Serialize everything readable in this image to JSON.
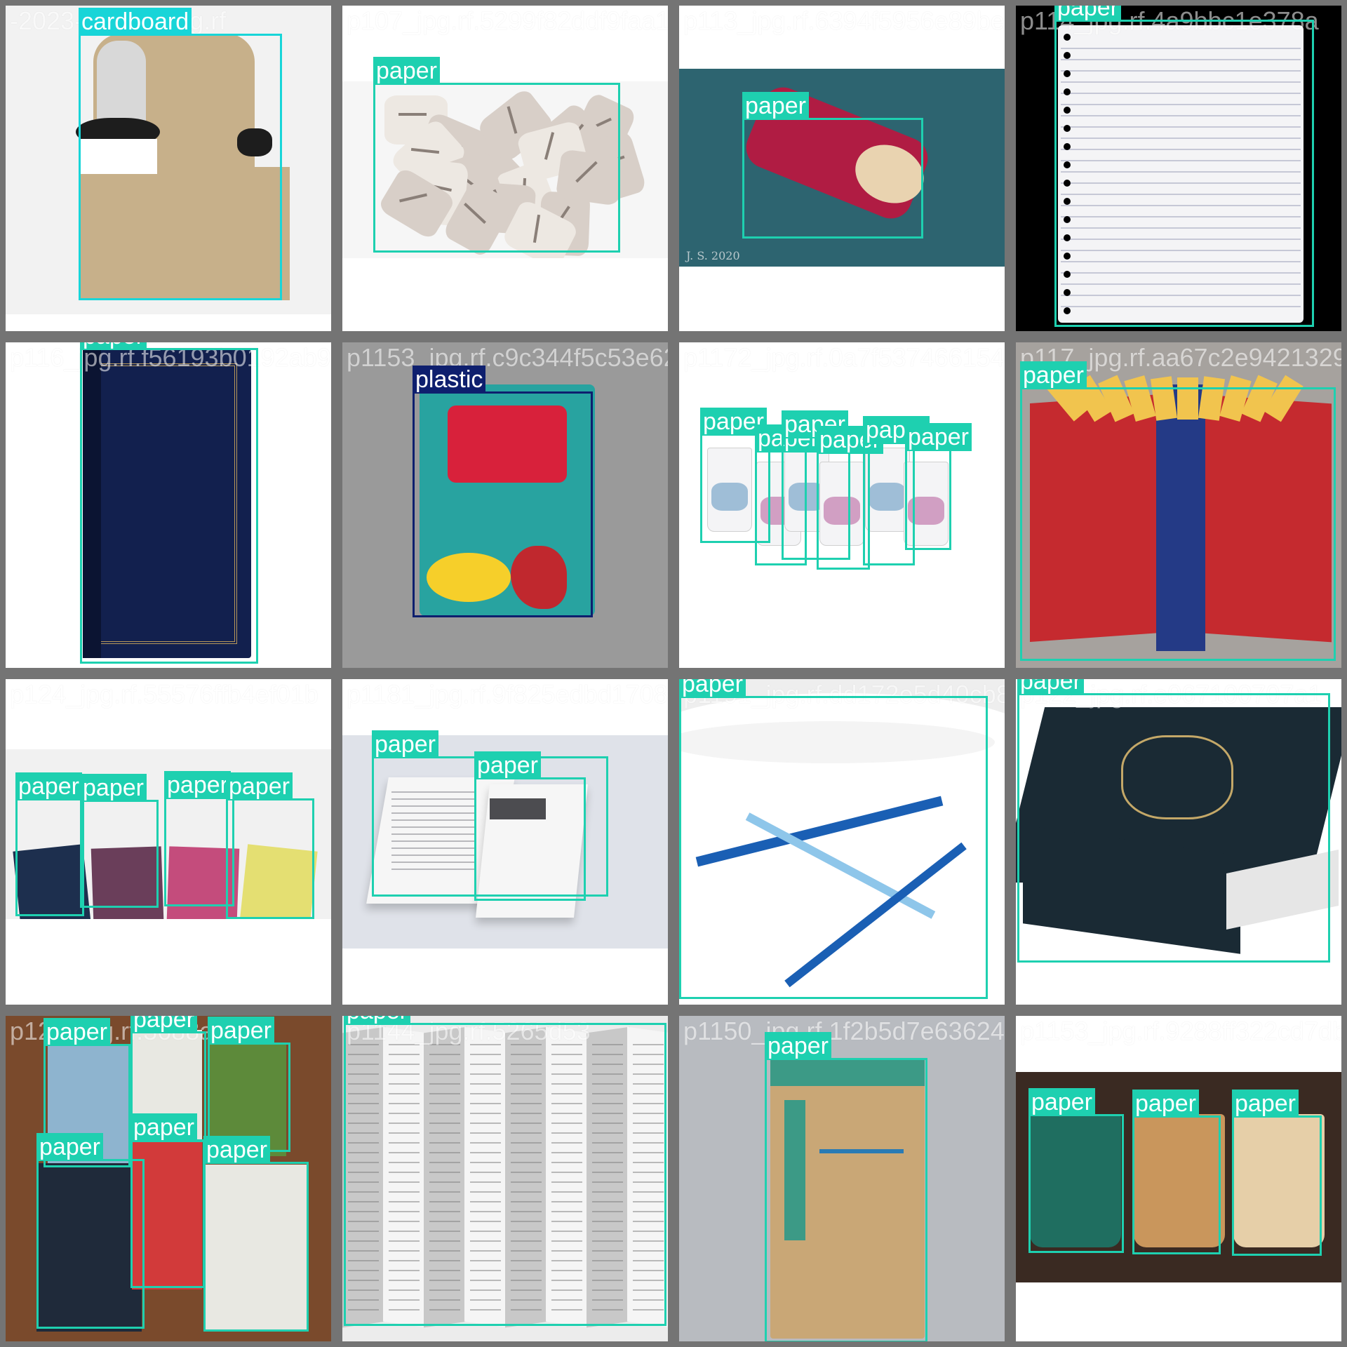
{
  "colors": {
    "paper": "#1ed0b0",
    "cardboard": "#18d5d8",
    "plastic": "#0e1f6e",
    "grid_line": "#747474"
  },
  "tiles": [
    {
      "filename": "-2023-06-16_png.rf",
      "scene": {
        "bg": "#f2f2f2",
        "subject": "cardboard-cup-carrier",
        "colors": [
          "#c7b08a",
          "#1d1d1d",
          "#ffffff"
        ]
      },
      "boxes": [
        {
          "label": "cardboard"
        }
      ]
    },
    {
      "filename": "p107_jpg.rf.5299f82ddf9faa15c7d4",
      "scene": {
        "bg": "#f6f6f6",
        "subject": "crumpled-newspaper",
        "colors": [
          "#d8cfc8",
          "#8a7f78",
          "#ede8e2"
        ]
      },
      "boxes": [
        {
          "label": "paper"
        }
      ]
    },
    {
      "filename": "p113_jpg.rf.6394f5956e89be01",
      "scene": {
        "bg": "#2d6470",
        "subject": "paper-cup-sleeve",
        "colors": [
          "#b01c43",
          "#e9d3b0",
          "#ffffff"
        ],
        "caption": "J. S. 2020"
      },
      "boxes": [
        {
          "label": "paper"
        }
      ]
    },
    {
      "filename": "p114_jpg.rf.4a9bbc1e378a",
      "scene": {
        "bg": "#000000",
        "subject": "torn-notebook-page",
        "colors": [
          "#f4f4f6",
          "#c6c8d6",
          "#000000"
        ]
      },
      "boxes": [
        {
          "label": "paper"
        }
      ]
    },
    {
      "filename": "p116_jpg.rf.f56193b0192ab95",
      "scene": {
        "bg": "#ffffff",
        "subject": "blue-hardcover-book",
        "colors": [
          "#12204e",
          "#b8985a",
          "#0b1432"
        ]
      },
      "boxes": [
        {
          "label": "paper"
        }
      ]
    },
    {
      "filename": "p1153_jpg.rf.c9c344f5c53e62d",
      "scene": {
        "bg": "#9a9a9a",
        "subject": "chips-bag",
        "colors": [
          "#28a3a0",
          "#d8213b",
          "#f6cf2a"
        ]
      },
      "boxes": [
        {
          "label": "plastic"
        }
      ]
    },
    {
      "filename": "p1172_jpg.rf.0a7f5374661546",
      "scene": {
        "bg": "#ffffff",
        "subject": "row-of-paper-cups",
        "colors": [
          "#f4f4f6",
          "#8ab0cf",
          "#c88ab6"
        ]
      },
      "boxes": [
        {
          "label": "paper"
        },
        {
          "label": "paper"
        },
        {
          "label": "paper"
        },
        {
          "label": "paper"
        },
        {
          "label": "paper"
        },
        {
          "label": "paper"
        }
      ]
    },
    {
      "filename": "p117_jpg.rf.aa67c2e94213294",
      "scene": {
        "bg": "#a6a29e",
        "subject": "handmade-journal",
        "colors": [
          "#c52a2f",
          "#243a86",
          "#f1c44e"
        ]
      },
      "boxes": [
        {
          "label": "paper"
        }
      ]
    },
    {
      "filename": "p124_jpg.rf.55576ffb4ef01b",
      "scene": {
        "bg": "#f1f1f1",
        "subject": "stack-of-novels",
        "colors": [
          "#1d2f4e",
          "#b85a9a",
          "#e4df72"
        ]
      },
      "boxes": [
        {
          "label": "paper"
        },
        {
          "label": "paper"
        },
        {
          "label": "paper"
        },
        {
          "label": "paper"
        }
      ]
    },
    {
      "filename": "p1181_jpg.rf.9f825edbd1708bf59",
      "scene": {
        "bg": "#dfe2e9",
        "subject": "instruction-booklet",
        "colors": [
          "#f6f6f6",
          "#b8b8bc",
          "#4c4c50"
        ]
      },
      "boxes": [
        {
          "label": "paper"
        },
        {
          "label": "paper"
        }
      ]
    },
    {
      "filename": "p1191_jpg.rf.dd172e5d40cb8",
      "scene": {
        "bg": "#eeeeee",
        "subject": "large-paper-cup",
        "colors": [
          "#ffffff",
          "#1a5fb4",
          "#8ec6ea"
        ]
      },
      "boxes": [
        {
          "label": "paper"
        }
      ]
    },
    {
      "filename": "p122_jpg.rf.e067100707a1",
      "scene": {
        "bg": "#ffffff",
        "subject": "ornate-hardcover-book",
        "colors": [
          "#1a2a34",
          "#c4a868",
          "#e6e6e6"
        ]
      },
      "boxes": [
        {
          "label": "paper"
        }
      ]
    },
    {
      "filename": "p125_jpg.rf.3688a",
      "scene": {
        "bg": "#7a4a2c",
        "subject": "several-books-on-wood",
        "colors": [
          "#e8e8e2",
          "#d23a3a",
          "#2f6d8e"
        ]
      },
      "boxes": [
        {
          "label": "paper"
        },
        {
          "label": "paper"
        },
        {
          "label": "paper"
        },
        {
          "label": "paper"
        },
        {
          "label": "paper"
        },
        {
          "label": "paper"
        }
      ]
    },
    {
      "filename": "p1144_jpg.rf.5265d53",
      "scene": {
        "bg": "#ececec",
        "subject": "folded-printed-pages",
        "colors": [
          "#f5f5f5",
          "#c8c8c8",
          "#7e7e7e"
        ]
      },
      "boxes": [
        {
          "label": "paper"
        }
      ]
    },
    {
      "filename": "p1150_jpg.rf.1f2b5d7e63624",
      "scene": {
        "bg": "#b8bbc0",
        "subject": "kraft-paper-bag",
        "colors": [
          "#c9a776",
          "#3c9a86",
          "#2a7bb4"
        ]
      },
      "boxes": [
        {
          "label": "paper"
        }
      ]
    },
    {
      "filename": "p1153_jpg.rf.9288ff322cd7db",
      "scene": {
        "bg": "#ffffff",
        "subject": "three-paper-cups",
        "colors": [
          "#1f6e60",
          "#c9965c",
          "#e6cfa8"
        ]
      },
      "boxes": [
        {
          "label": "paper"
        },
        {
          "label": "paper"
        },
        {
          "label": "paper"
        }
      ]
    }
  ]
}
